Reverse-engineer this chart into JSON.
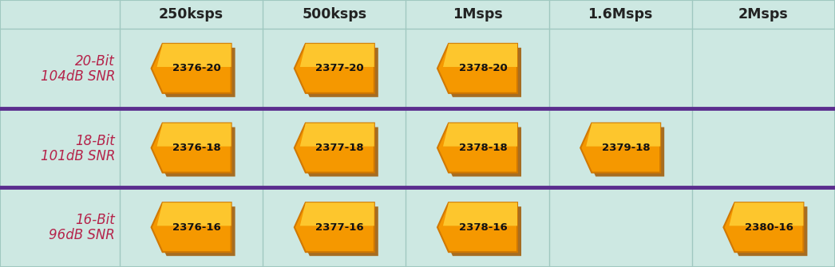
{
  "bg_color": "#cde8e2",
  "border_color": "#a0c8c0",
  "separator_color": "#5b2d8e",
  "text_color_row": "#b5234a",
  "chip_fill_top": "#ffcc33",
  "chip_fill_bot": "#f59800",
  "chip_edge_color": "#d07800",
  "chip_shadow_color": "#a05800",
  "chip_text_color": "#111111",
  "header_text_color": "#222222",
  "col_headers": [
    "250ksps",
    "500ksps",
    "1Msps",
    "1.6Msps",
    "2Msps"
  ],
  "row_labels": [
    [
      "20-Bit",
      "104dB SNR"
    ],
    [
      "18-Bit",
      "101dB SNR"
    ],
    [
      "16-Bit",
      "96dB SNR"
    ]
  ],
  "chips": [
    [
      {
        "col": 0,
        "label": "2376-20"
      },
      {
        "col": 1,
        "label": "2377-20"
      },
      {
        "col": 2,
        "label": "2378-20"
      }
    ],
    [
      {
        "col": 0,
        "label": "2376-18"
      },
      {
        "col": 1,
        "label": "2377-18"
      },
      {
        "col": 2,
        "label": "2378-18"
      },
      {
        "col": 3,
        "label": "2379-18"
      }
    ],
    [
      {
        "col": 0,
        "label": "2376-16"
      },
      {
        "col": 1,
        "label": "2377-16"
      },
      {
        "col": 2,
        "label": "2378-16"
      },
      {
        "col": 4,
        "label": "2380-16"
      }
    ]
  ],
  "figsize": [
    10.46,
    3.35
  ],
  "dpi": 100
}
